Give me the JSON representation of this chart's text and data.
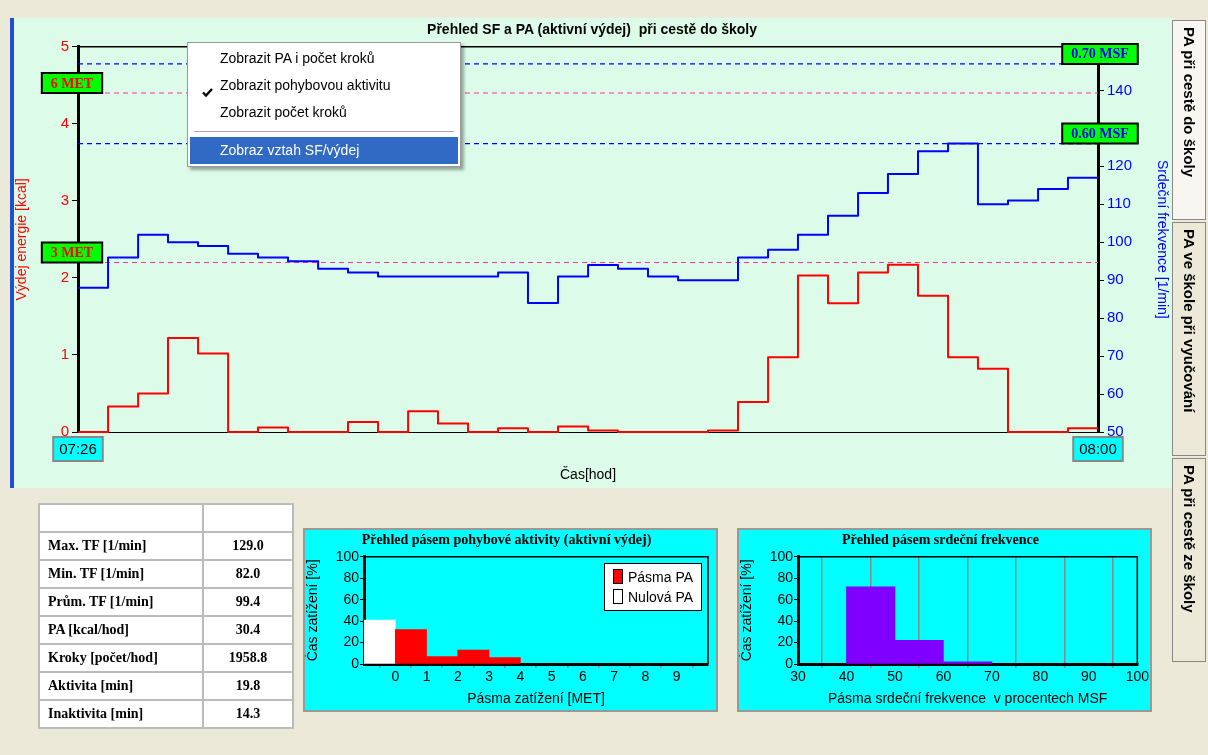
{
  "chart_data": [
    {
      "type": "step",
      "title": "Přehled SF a PA (aktivní výdej)  při cestě do školy",
      "xlabel": "Čas[hod]",
      "ylabel": "Výdej energie [kcal]",
      "y2label": "Srdeční frekvence [1/min]",
      "x": [
        7.4333,
        7.45,
        7.4667,
        7.4833,
        7.5,
        7.5167,
        7.5333,
        7.55,
        7.5667,
        7.5833,
        7.6,
        7.6167,
        7.6333,
        7.65,
        7.6667,
        7.6833,
        7.7,
        7.7167,
        7.7333,
        7.75,
        7.7667,
        7.7833,
        7.8,
        7.8167,
        7.8333,
        7.85,
        7.8667,
        7.8833,
        7.9,
        7.9167,
        7.9333,
        7.95,
        7.9667,
        7.9833,
        8.0
      ],
      "xlim": [
        7.4333,
        8.0
      ],
      "xticks": [
        {
          "value": 7.4333,
          "label": "07:26"
        },
        {
          "value": 8.0,
          "label": "08:00"
        }
      ],
      "ylim": [
        0,
        5
      ],
      "yticks": [
        0,
        1,
        2,
        3,
        4,
        5
      ],
      "y2lim": [
        50,
        151.5
      ],
      "y2ticks": [
        50,
        60,
        70,
        80,
        90,
        100,
        110,
        120,
        {
          "value": 130,
          "label": null
        },
        140
      ],
      "series": [
        {
          "color": "#ff0000",
          "values": [
            0,
            0.33,
            0.5,
            1.22,
            1.02,
            0,
            0.06,
            0,
            0,
            0.13,
            0,
            0.27,
            0.11,
            0,
            0.05,
            0,
            0.07,
            0.02,
            0,
            0,
            0,
            0.02,
            0.39,
            0.97,
            2.03,
            1.67,
            2.07,
            2.17,
            1.77,
            0.97,
            0.82,
            0,
            0,
            0.05,
            0.05
          ]
        },
        {
          "color": "#0000ff",
          "axis": "y2",
          "values": [
            88,
            96,
            102,
            100,
            99,
            97,
            96,
            95,
            93,
            92,
            91,
            91,
            91,
            91,
            92,
            84,
            91,
            94,
            93,
            91,
            90,
            90,
            96,
            98,
            102,
            107,
            113,
            118,
            124,
            126,
            110,
            111,
            114,
            117,
            117
          ]
        }
      ],
      "ref_lines": [
        {
          "axis": "y",
          "value": 4.4,
          "label": "6 MET",
          "color": "#ff3399",
          "line_style": "dashed"
        },
        {
          "axis": "y",
          "value": 2.2,
          "label": "3 MET",
          "color": "#ff3399",
          "line_style": "dashed"
        },
        {
          "axis": "y2",
          "value": 147,
          "label": "0.70 MSF",
          "color": "#0000ff",
          "line_style": "dashed"
        },
        {
          "axis": "y2",
          "value": 126,
          "label": "0.60 MSF",
          "color": "#0000ff",
          "line_style": "dashed"
        }
      ]
    },
    {
      "type": "histogram",
      "title": "Přehled pásem pohybové aktivity (aktivní výdej)",
      "xlabel": "Pásma zatížení [MET]",
      "ylabel": "Čas zatížení [%]",
      "xlim": [
        -1,
        10
      ],
      "xticks": [
        0,
        1,
        2,
        3,
        4,
        5,
        6,
        7,
        8,
        9
      ],
      "ylim": [
        0,
        100
      ],
      "yticks": [
        0,
        20,
        40,
        60,
        80,
        100
      ],
      "legend": "top right",
      "bins": [
        -1,
        0,
        1,
        2,
        3,
        4
      ],
      "series": [
        {
          "name": "Pásma PA",
          "color": "#ff0000",
          "values": [
            null,
            32,
            7,
            13,
            6
          ]
        },
        {
          "name": "Nulová PA",
          "color": "#ffffff",
          "values": [
            41,
            null,
            null,
            null,
            null
          ]
        }
      ]
    },
    {
      "type": "histogram",
      "title": "Přehled pásem srdeční frekvence",
      "xlabel": "Pásma srdeční frekvence  v procentech MSF",
      "ylabel": "Čas zatížení [%]",
      "xlim": [
        30,
        100
      ],
      "xticks": [
        30,
        40,
        50,
        60,
        70,
        80,
        90,
        100
      ],
      "ylim": [
        0,
        100
      ],
      "yticks": [
        0,
        20,
        40,
        60,
        80,
        100
      ],
      "grid": "x",
      "bins": [
        40,
        50,
        60,
        70
      ],
      "values": [
        72,
        22,
        2
      ],
      "color": "#8000ff"
    },
    {
      "type": "other",
      "annotations": [
        "Max. TF [1/min]",
        "129.0",
        "Min. TF [1/min]",
        "82.0",
        "Prům. TF [1/min]",
        "99.4",
        "PA [kcal/hod]",
        "30.4",
        "Kroky [počet/hod]",
        "1958.8",
        "Aktivita [min]",
        "19.8",
        "Inaktivita [min]",
        "14.3"
      ]
    },
    {
      "type": "other",
      "annotations": [
        "Zobrazit PA i počet kroků",
        "Zobrazit pohybovou aktivitu",
        "Zobrazit počet kroků",
        "Zobraz vztah SF/výdej"
      ]
    },
    {
      "type": "other",
      "annotations": [
        "PA při cestě do školy",
        "PA ve škole při vyučování",
        "PA při cestě ze školy"
      ]
    }
  ]
}
